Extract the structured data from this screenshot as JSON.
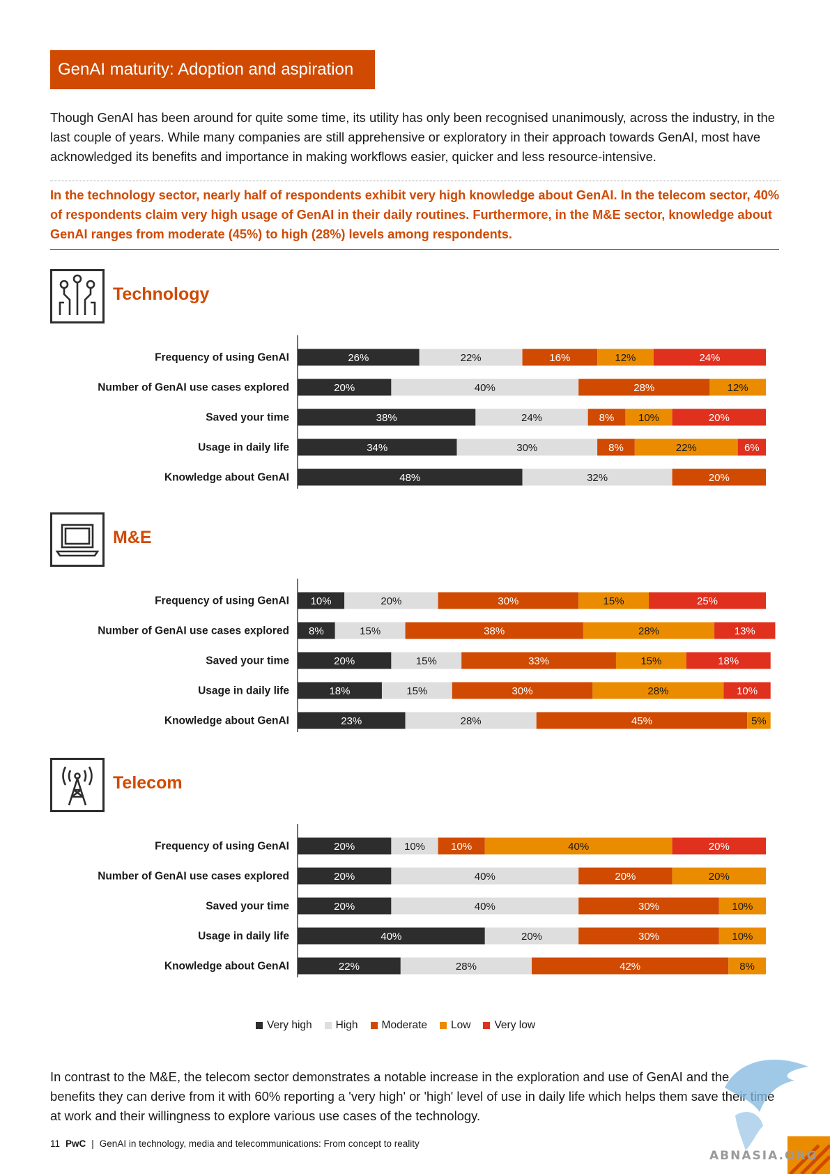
{
  "header": {
    "title": "GenAI maturity: Adoption and aspiration"
  },
  "intro": "Though GenAI has been around for quite some time, its utility has only been recognised unanimously, across the industry, in the last couple of years. While many companies are still apprehensive or exploratory in their approach towards GenAI, most have acknowledged its benefits and importance in making workflows easier, quicker and less resource-intensive.",
  "highlight": "In the technology sector, nearly half of respondents exhibit very high knowledge about GenAI. In the telecom sector, 40% of respondents claim very high usage of GenAI in their daily routines. Furthermore, in the M&E sector, knowledge about GenAI ranges from moderate (45%) to high (28%) levels among respondents.",
  "colors": {
    "very_high": "#2d2d2d",
    "high": "#dedede",
    "moderate": "#d04a02",
    "low": "#eb8c00",
    "very_low": "#e0301e",
    "accent": "#d04a02"
  },
  "sections": [
    {
      "title": "Technology",
      "icon": "circuit-icon"
    },
    {
      "title": "M&E",
      "icon": "laptop-icon"
    },
    {
      "title": "Telecom",
      "icon": "antenna-tower-icon"
    }
  ],
  "chart_data": [
    {
      "type": "bar",
      "orientation": "horizontal-stacked-100",
      "title": "Technology",
      "categories": [
        "Frequency of using GenAI",
        "Number of GenAI use cases explored",
        "Saved your time",
        "Usage in daily life",
        "Knowledge about GenAI"
      ],
      "series": [
        {
          "name": "Very high",
          "values": [
            26,
            20,
            38,
            34,
            48
          ]
        },
        {
          "name": "High",
          "values": [
            22,
            40,
            24,
            30,
            32
          ]
        },
        {
          "name": "Moderate",
          "values": [
            16,
            28,
            8,
            8,
            20
          ]
        },
        {
          "name": "Low",
          "values": [
            12,
            12,
            10,
            22,
            0
          ]
        },
        {
          "name": "Very low",
          "values": [
            24,
            0,
            20,
            6,
            0
          ]
        }
      ],
      "xlim": [
        0,
        100
      ]
    },
    {
      "type": "bar",
      "orientation": "horizontal-stacked-100",
      "title": "M&E",
      "categories": [
        "Frequency of using GenAI",
        "Number of GenAI use cases explored",
        "Saved your time",
        "Usage in daily life",
        "Knowledge about GenAI"
      ],
      "series": [
        {
          "name": "Very high",
          "values": [
            10,
            8,
            20,
            18,
            23
          ]
        },
        {
          "name": "High",
          "values": [
            20,
            15,
            15,
            15,
            28
          ]
        },
        {
          "name": "Moderate",
          "values": [
            30,
            38,
            33,
            30,
            45
          ]
        },
        {
          "name": "Low",
          "values": [
            15,
            28,
            15,
            28,
            5
          ]
        },
        {
          "name": "Very low",
          "values": [
            25,
            13,
            18,
            10,
            0
          ]
        }
      ],
      "xlim": [
        0,
        100
      ]
    },
    {
      "type": "bar",
      "orientation": "horizontal-stacked-100",
      "title": "Telecom",
      "categories": [
        "Frequency of using GenAI",
        "Number of GenAI use cases explored",
        "Saved your time",
        "Usage in daily life",
        "Knowledge about GenAI"
      ],
      "series": [
        {
          "name": "Very high",
          "values": [
            20,
            20,
            20,
            40,
            22
          ]
        },
        {
          "name": "High",
          "values": [
            10,
            40,
            40,
            20,
            28
          ]
        },
        {
          "name": "Moderate",
          "values": [
            10,
            20,
            30,
            30,
            42
          ]
        },
        {
          "name": "Low",
          "values": [
            40,
            20,
            10,
            10,
            8
          ]
        },
        {
          "name": "Very low",
          "values": [
            20,
            0,
            0,
            0,
            0
          ]
        }
      ],
      "xlim": [
        0,
        100
      ]
    }
  ],
  "legend": [
    {
      "label": "Very high",
      "key": "very_high"
    },
    {
      "label": "High",
      "key": "high"
    },
    {
      "label": "Moderate",
      "key": "moderate"
    },
    {
      "label": "Low",
      "key": "low"
    },
    {
      "label": "Very low",
      "key": "very_low"
    }
  ],
  "closing": "In contrast to the M&E, the telecom sector demonstrates a notable increase in the exploration and use of GenAI and the benefits they can derive from it with 60% reporting a 'very high' or 'high' level of use in daily life which helps them save their time at work and their willingness to explore various use cases of the technology.",
  "footer": {
    "page": "11",
    "brand": "PwC",
    "separator": "|",
    "doc_title": "GenAI in technology, media and telecommunications: From concept to reality"
  },
  "watermark": {
    "text": "ABNASIA.ORG"
  }
}
